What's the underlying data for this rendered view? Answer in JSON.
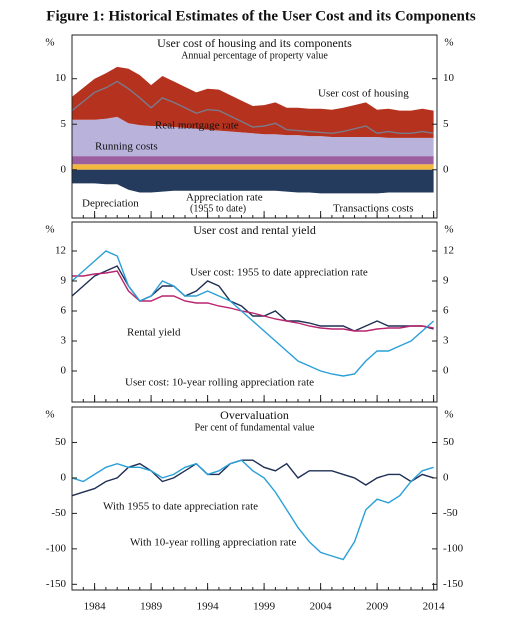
{
  "figure_title": "Figure 1: Historical Estimates of the User Cost and its Components",
  "chart_data": [
    {
      "type": "area",
      "title": "User cost of housing and its components",
      "subtitle": "Annual percentage of property value",
      "unit": "%",
      "x": [
        1982,
        1983,
        1984,
        1985,
        1986,
        1987,
        1988,
        1989,
        1990,
        1991,
        1992,
        1993,
        1994,
        1995,
        1996,
        1997,
        1998,
        1999,
        2000,
        2001,
        2002,
        2003,
        2004,
        2005,
        2006,
        2007,
        2008,
        2009,
        2010,
        2011,
        2012,
        2013,
        2014
      ],
      "xlim": [
        1982,
        2014.3
      ],
      "xticks": [
        1984,
        1989,
        1994,
        1999,
        2004,
        2009,
        2014
      ],
      "ylim": [
        -5.3,
        14.8
      ],
      "yticks": [
        0,
        5,
        10
      ],
      "series": [
        {
          "name": "Transactions costs",
          "color": "#f2b840",
          "values": [
            0.6,
            0.6,
            0.6,
            0.6,
            0.6,
            0.6,
            0.6,
            0.6,
            0.6,
            0.6,
            0.6,
            0.6,
            0.6,
            0.6,
            0.6,
            0.6,
            0.6,
            0.6,
            0.6,
            0.6,
            0.6,
            0.6,
            0.6,
            0.6,
            0.6,
            0.6,
            0.6,
            0.6,
            0.6,
            0.6,
            0.6,
            0.6,
            0.6
          ]
        },
        {
          "name": "Depreciation",
          "color": "#9b5fa0",
          "values": [
            0.9,
            0.9,
            0.9,
            0.9,
            0.9,
            0.9,
            0.9,
            0.9,
            0.9,
            0.9,
            0.9,
            0.9,
            0.9,
            0.9,
            0.9,
            0.9,
            0.9,
            0.9,
            0.9,
            0.9,
            0.9,
            0.9,
            0.9,
            0.9,
            0.9,
            0.9,
            0.9,
            0.9,
            0.9,
            0.9,
            0.9,
            0.9,
            0.9
          ]
        },
        {
          "name": "Running costs",
          "color": "#b9b3dc",
          "values": [
            4.0,
            4.0,
            4.0,
            4.1,
            4.3,
            3.6,
            3.4,
            3.3,
            3.3,
            3.2,
            3.1,
            3.0,
            2.9,
            2.8,
            2.7,
            2.6,
            2.5,
            2.4,
            2.4,
            2.3,
            2.3,
            2.2,
            2.2,
            2.1,
            2.1,
            2.1,
            2.1,
            2.1,
            2.0,
            2.0,
            2.0,
            2.0,
            2.0
          ]
        },
        {
          "name": "Real mortgage rate",
          "color": "#b5321e",
          "values": [
            2.5,
            3.5,
            4.5,
            5.0,
            5.5,
            6.0,
            5.5,
            4.5,
            5.5,
            5.0,
            4.5,
            4.0,
            4.5,
            4.5,
            4.0,
            3.5,
            3.0,
            3.2,
            3.5,
            3.0,
            3.0,
            3.0,
            3.0,
            3.0,
            3.2,
            3.5,
            3.8,
            3.0,
            3.2,
            3.0,
            3.0,
            3.2,
            3.0
          ]
        },
        {
          "name": "Appreciation rate",
          "color": "#243b5e",
          "values": [
            -1.5,
            -1.5,
            -1.5,
            -1.6,
            -1.6,
            -2.2,
            -2.5,
            -2.5,
            -2.4,
            -2.3,
            -2.3,
            -2.3,
            -2.3,
            -2.3,
            -2.3,
            -2.3,
            -2.3,
            -2.3,
            -2.3,
            -2.4,
            -2.5,
            -2.5,
            -2.6,
            -2.6,
            -2.6,
            -2.6,
            -2.6,
            -2.6,
            -2.5,
            -2.5,
            -2.5,
            -2.5,
            -2.5
          ]
        },
        {
          "name": "User cost of housing",
          "type": "line",
          "color": "#7a7a8a",
          "values": [
            6.5,
            7.5,
            8.5,
            9.0,
            9.7,
            8.9,
            7.9,
            6.8,
            7.9,
            7.4,
            6.8,
            6.2,
            6.6,
            6.5,
            5.9,
            5.3,
            4.7,
            4.8,
            5.1,
            4.4,
            4.3,
            4.2,
            4.1,
            4.0,
            4.2,
            4.5,
            4.8,
            4.0,
            4.2,
            4.0,
            4.0,
            4.2,
            4.0
          ]
        }
      ],
      "annotations": [
        "(1955 to date)"
      ]
    },
    {
      "type": "line",
      "title": "User cost and rental yield",
      "unit": "%",
      "x": [
        1982,
        1983,
        1984,
        1985,
        1986,
        1987,
        1988,
        1989,
        1990,
        1991,
        1992,
        1993,
        1994,
        1995,
        1996,
        1997,
        1998,
        1999,
        2000,
        2001,
        2002,
        2003,
        2004,
        2005,
        2006,
        2007,
        2008,
        2009,
        2010,
        2011,
        2012,
        2013,
        2014
      ],
      "xlim": [
        1982,
        2014.3
      ],
      "xticks": [
        1984,
        1989,
        1994,
        1999,
        2004,
        2009,
        2014
      ],
      "ylim": [
        -3.1,
        14.9
      ],
      "yticks": [
        0,
        3,
        6,
        9,
        12
      ],
      "series": [
        {
          "name": "User cost: 1955 to date appreciation rate",
          "color": "#1f2f55",
          "values": [
            7.5,
            8.5,
            9.5,
            10.0,
            10.5,
            8.5,
            7.0,
            7.5,
            8.5,
            8.5,
            7.5,
            8.0,
            9.0,
            8.5,
            7.0,
            6.5,
            5.5,
            5.5,
            6.0,
            5.0,
            5.0,
            4.8,
            4.5,
            4.5,
            4.5,
            4.0,
            4.5,
            5.0,
            4.5,
            4.5,
            4.5,
            4.5,
            4.2
          ]
        },
        {
          "name": "Rental yield",
          "color": "#b8246e",
          "values": [
            9.5,
            9.5,
            9.7,
            9.8,
            10.0,
            8.0,
            7.0,
            7.0,
            7.5,
            7.5,
            7.0,
            6.8,
            6.8,
            6.5,
            6.3,
            6.0,
            5.8,
            5.5,
            5.2,
            5.0,
            4.8,
            4.5,
            4.3,
            4.2,
            4.2,
            4.0,
            4.0,
            4.2,
            4.3,
            4.3,
            4.5,
            4.5,
            4.3
          ]
        },
        {
          "name": "User cost: 10-year rolling appreciation rate",
          "color": "#2aa0d8",
          "values": [
            9.0,
            10.0,
            11.0,
            12.0,
            11.5,
            8.5,
            7.0,
            7.5,
            9.0,
            8.5,
            7.5,
            7.5,
            8.0,
            7.5,
            7.0,
            6.0,
            5.0,
            4.0,
            3.0,
            2.0,
            1.0,
            0.5,
            0.0,
            -0.3,
            -0.5,
            -0.3,
            1.0,
            2.0,
            2.0,
            2.5,
            3.0,
            4.0,
            5.0
          ]
        }
      ]
    },
    {
      "type": "line",
      "title": "Overvaluation",
      "subtitle": "Per cent of fundamental value",
      "unit": "%",
      "x": [
        1982,
        1983,
        1984,
        1985,
        1986,
        1987,
        1988,
        1989,
        1990,
        1991,
        1992,
        1993,
        1994,
        1995,
        1996,
        1997,
        1998,
        1999,
        2000,
        2001,
        2002,
        2003,
        2004,
        2005,
        2006,
        2007,
        2008,
        2009,
        2010,
        2011,
        2012,
        2013,
        2014
      ],
      "xlim": [
        1982,
        2014.3
      ],
      "xticks": [
        1984,
        1989,
        1994,
        1999,
        2004,
        2009,
        2014
      ],
      "ylim": [
        -158,
        100
      ],
      "yticks": [
        50,
        0,
        -50,
        -100,
        -150
      ],
      "series": [
        {
          "name": "With 1955 to date appreciation rate",
          "color": "#1f2f55",
          "values": [
            -25,
            -20,
            -15,
            -5,
            0,
            15,
            20,
            10,
            -5,
            0,
            10,
            20,
            5,
            5,
            20,
            25,
            25,
            15,
            10,
            20,
            0,
            10,
            10,
            10,
            5,
            0,
            -10,
            0,
            5,
            5,
            -5,
            5,
            0
          ]
        },
        {
          "name": "With 10-year rolling appreciation rate",
          "color": "#2aa0d8",
          "values": [
            0,
            -5,
            5,
            15,
            20,
            15,
            15,
            10,
            0,
            5,
            15,
            20,
            5,
            10,
            20,
            25,
            10,
            0,
            -20,
            -45,
            -70,
            -90,
            -105,
            -110,
            -115,
            -90,
            -45,
            -30,
            -35,
            -25,
            -5,
            10,
            15
          ]
        }
      ]
    }
  ]
}
